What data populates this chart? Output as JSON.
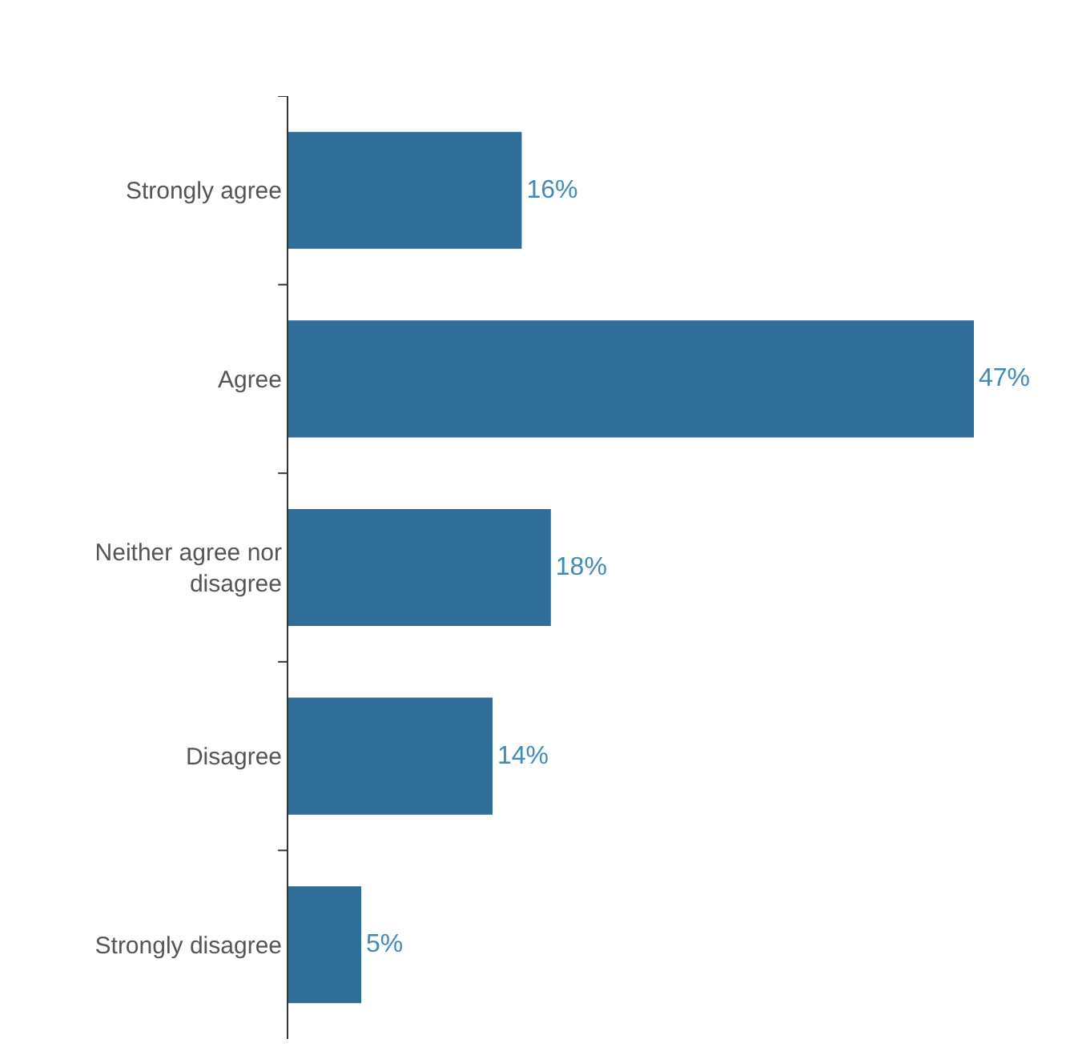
{
  "chart_data": {
    "type": "bar",
    "orientation": "horizontal",
    "categories": [
      "Strongly agree",
      "Agree",
      "Neither agree nor disagree",
      "Disagree",
      "Strongly disagree"
    ],
    "values": [
      16,
      47,
      18,
      14,
      5
    ],
    "value_labels": [
      "16%",
      "47%",
      "18%",
      "14%",
      "5%"
    ],
    "color": "#2f6e98",
    "tick_labels": "y"
  }
}
